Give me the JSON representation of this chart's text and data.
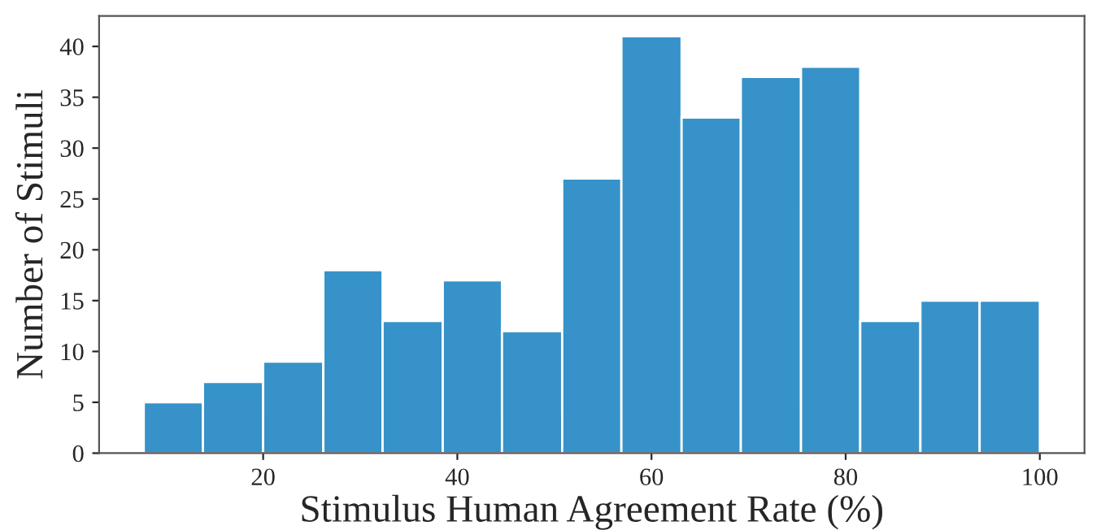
{
  "chart_data": {
    "type": "histogram",
    "xlabel": "Stimulus Human Agreement Rate (%)",
    "ylabel": "Number of Stimuli",
    "bins": [
      7.7,
      13.8,
      20.0,
      26.2,
      32.3,
      38.5,
      44.6,
      50.8,
      56.9,
      63.1,
      69.2,
      75.4,
      81.5,
      87.7,
      93.8,
      100
    ],
    "values": [
      5,
      7,
      9,
      18,
      13,
      17,
      12,
      27,
      41,
      33,
      37,
      38,
      13,
      15,
      15
    ],
    "color": "#3692c9",
    "xlim": [
      3.1,
      104.6
    ],
    "xticks": [
      20,
      40,
      60,
      80,
      100
    ],
    "ylim": [
      0,
      43
    ],
    "yticks": [
      0,
      5,
      10,
      15,
      20,
      25,
      30,
      35,
      40
    ],
    "grid": false
  }
}
